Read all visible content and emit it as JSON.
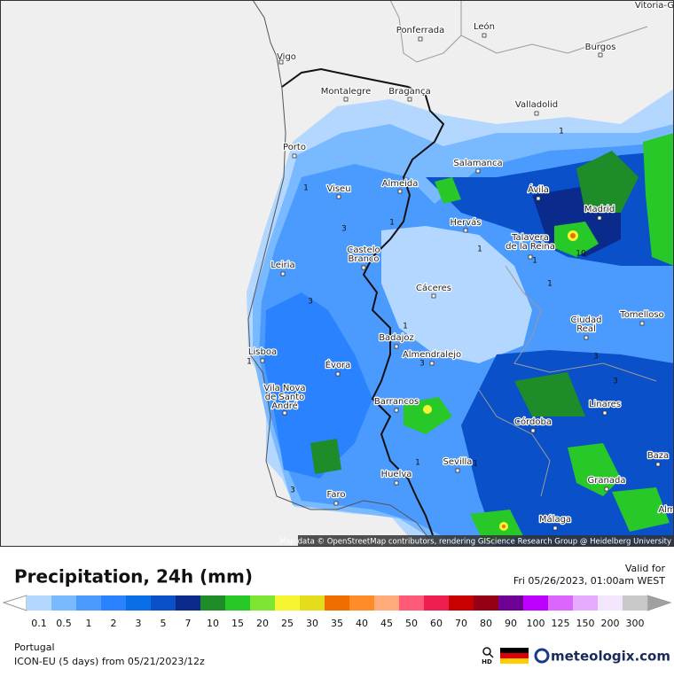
{
  "map": {
    "cities": [
      {
        "lines": [
          "Vitoria-G"
        ]
      },
      {
        "lines": [
          "Ponferrada"
        ]
      },
      {
        "lines": [
          "León"
        ]
      },
      {
        "lines": [
          "Burgos"
        ]
      },
      {
        "lines": [
          "Vigo"
        ]
      },
      {
        "lines": [
          "Montalegre"
        ]
      },
      {
        "lines": [
          "Bragança"
        ]
      },
      {
        "lines": [
          "Valladolid"
        ]
      },
      {
        "lines": [
          "Porto"
        ]
      },
      {
        "lines": [
          "Salamanca"
        ]
      },
      {
        "lines": [
          "Ávila"
        ]
      },
      {
        "lines": [
          "Madrid"
        ]
      },
      {
        "lines": [
          "Viseu"
        ]
      },
      {
        "lines": [
          "Almeida"
        ]
      },
      {
        "lines": [
          "Hervás"
        ]
      },
      {
        "lines": [
          "Talavera",
          "de la Reina"
        ]
      },
      {
        "lines": [
          "Castelo",
          "Branco"
        ]
      },
      {
        "lines": [
          "Leiria"
        ]
      },
      {
        "lines": [
          "Cáceres"
        ]
      },
      {
        "lines": [
          "Ciudad",
          "Real"
        ]
      },
      {
        "lines": [
          "Tomelloso"
        ]
      },
      {
        "lines": [
          "Badajoz"
        ]
      },
      {
        "lines": [
          "Lisboa"
        ]
      },
      {
        "lines": [
          "Almendralejo"
        ]
      },
      {
        "lines": [
          "Évora"
        ]
      },
      {
        "lines": [
          "Vila Nova",
          "de Santo",
          "André"
        ]
      },
      {
        "lines": [
          "Barrancos"
        ]
      },
      {
        "lines": [
          "Linares"
        ]
      },
      {
        "lines": [
          "Córdoba"
        ]
      },
      {
        "lines": [
          "Baza"
        ]
      },
      {
        "lines": [
          "Sevilla"
        ]
      },
      {
        "lines": [
          "Huelva"
        ]
      },
      {
        "lines": [
          "Granada"
        ]
      },
      {
        "lines": [
          "Faro"
        ]
      },
      {
        "lines": [
          "Málaga"
        ]
      },
      {
        "lines": [
          "Alm"
        ]
      }
    ],
    "contour_labels": [
      "1",
      "1",
      "3",
      "1",
      "1",
      "3",
      "1",
      "10",
      "1",
      "3",
      "1",
      "3",
      "1",
      "1",
      "3",
      "1",
      "3"
    ],
    "attribution": "Map data © OpenStreetMap contributors, rendering GIScience Research Group @ Heidelberg University"
  },
  "footer": {
    "title": "Precipitation, 24h (mm)",
    "valid_label": "Valid for",
    "valid_time": "Fri 05/26/2023, 01:00am WEST",
    "region": "Portugal",
    "model": "ICON-EU (5 days) from 05/21/2023/12z",
    "hd": "HD",
    "brand": "meteologix.com"
  },
  "legend": [
    {
      "label": "0.1",
      "color": "#b4d7ff"
    },
    {
      "label": "0.5",
      "color": "#78b9ff"
    },
    {
      "label": "1",
      "color": "#4b9bff"
    },
    {
      "label": "2",
      "color": "#2a82ff"
    },
    {
      "label": "3",
      "color": "#0a6ee6"
    },
    {
      "label": "5",
      "color": "#0a50c8"
    },
    {
      "label": "7",
      "color": "#0a2a8c"
    },
    {
      "label": "10",
      "color": "#1e8c28"
    },
    {
      "label": "15",
      "color": "#28c828"
    },
    {
      "label": "20",
      "color": "#7ee632"
    },
    {
      "label": "25",
      "color": "#f5f532"
    },
    {
      "label": "30",
      "color": "#e6dc1e"
    },
    {
      "label": "35",
      "color": "#f06e00"
    },
    {
      "label": "40",
      "color": "#ff8c28"
    },
    {
      "label": "45",
      "color": "#ffaa78"
    },
    {
      "label": "50",
      "color": "#ff5a78"
    },
    {
      "label": "60",
      "color": "#f01e50"
    },
    {
      "label": "70",
      "color": "#c80000"
    },
    {
      "label": "80",
      "color": "#960014"
    },
    {
      "label": "90",
      "color": "#6e0096"
    },
    {
      "label": "100",
      "color": "#be00ff"
    },
    {
      "label": "125",
      "color": "#dc64ff"
    },
    {
      "label": "150",
      "color": "#e6aaff"
    },
    {
      "label": "200",
      "color": "#f5e6ff"
    },
    {
      "label": "300",
      "color": "#c8c8c8"
    }
  ]
}
